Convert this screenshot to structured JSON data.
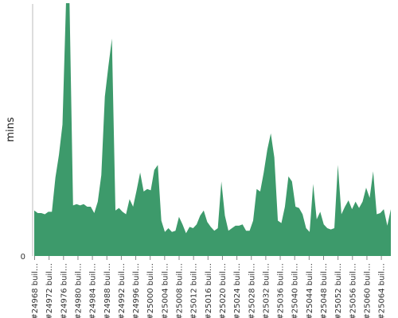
{
  "chart_data": {
    "type": "area",
    "ylabel": "mins",
    "xlabel": "",
    "title": "",
    "y_tick_labels": [
      "0"
    ],
    "ylim": [
      0,
      100
    ],
    "grid": false,
    "color": "#3d9a6b",
    "x_tick_labels": [
      "#24968 buil…",
      "#24972 buil…",
      "#24976 buil…",
      "#24980 buil…",
      "#24984 buil…",
      "#24988 buil…",
      "#24992 buil…",
      "#24996 buil…",
      "#25000 buil…",
      "#25004 buil…",
      "#25008 buil…",
      "#25012 buil…",
      "#25016 buil…",
      "#25020 buil…",
      "#25024 buil…",
      "#25028 buil…",
      "#25032 buil…",
      "#25036 buil…",
      "#25040 buil…",
      "#25044 buil…",
      "#25048 buil…",
      "#25052 buil…",
      "#25056 buil…",
      "#25060 buil…",
      "#25064 buil…"
    ],
    "values": [
      18,
      17,
      17,
      16.5,
      17.5,
      17.5,
      31,
      40,
      52,
      100,
      100,
      20,
      20.5,
      20,
      20.5,
      19.5,
      19.5,
      17,
      21.5,
      32,
      63,
      75,
      86,
      18,
      19,
      17.5,
      16.5,
      22.5,
      19.5,
      26,
      33,
      25.5,
      26.5,
      26,
      34,
      36,
      14,
      9.5,
      11,
      9.5,
      10,
      15.5,
      12.5,
      9,
      11.5,
      11,
      12.5,
      16,
      18,
      13.5,
      11.5,
      10,
      11,
      29.5,
      16,
      10,
      11,
      12,
      12,
      12.5,
      10,
      10,
      14,
      26.5,
      25.5,
      33,
      42,
      48.5,
      39,
      14,
      13,
      19.5,
      31.5,
      29.5,
      19.5,
      19,
      16.5,
      11,
      9.5,
      28.5,
      14.5,
      17.5,
      12.5,
      11,
      10.5,
      11,
      36,
      16.5,
      19.5,
      22,
      18.5,
      21.5,
      19,
      21.5,
      27,
      23,
      33.5,
      16.5,
      17,
      18.5,
      12,
      18.5
    ]
  }
}
